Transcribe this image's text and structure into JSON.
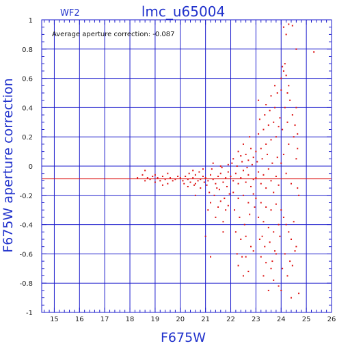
{
  "chart_data": {
    "type": "scatter",
    "title": "lmc_u65004",
    "panel_label": "WF2",
    "xlabel": "F675W",
    "ylabel": "F675W aperture correction",
    "annotation": "Average aperture correction: -0.087",
    "xlim": [
      14.5,
      26
    ],
    "ylim": [
      -1,
      1
    ],
    "x_ticks": [
      15,
      16,
      17,
      18,
      19,
      20,
      21,
      22,
      23,
      24,
      25,
      26
    ],
    "y_ticks": [
      -1,
      -0.8,
      -0.6,
      -0.4,
      -0.2,
      0,
      0.2,
      0.4,
      0.6,
      0.8,
      1
    ],
    "y_tick_labels": [
      "-1",
      "-0.8",
      "-0.6",
      "-0.4",
      "-0.2",
      "0",
      "0.2",
      "0.4",
      "0.6",
      "0.8",
      "1"
    ],
    "grid": true,
    "reference_line": {
      "y": -0.087
    },
    "colors": {
      "axis": "#1a1acc",
      "grid": "#1a1acc",
      "points": "#dd1111",
      "reference_line": "#dd1111",
      "text": "#2233cc"
    },
    "points": [
      [
        18.3,
        -0.08
      ],
      [
        18.5,
        -0.06
      ],
      [
        18.6,
        -0.1
      ],
      [
        18.7,
        -0.08
      ],
      [
        18.8,
        -0.09
      ],
      [
        18.9,
        -0.07
      ],
      [
        19.0,
        -0.11
      ],
      [
        19.1,
        -0.08
      ],
      [
        19.2,
        -0.1
      ],
      [
        19.3,
        -0.07
      ],
      [
        19.4,
        -0.09
      ],
      [
        19.5,
        -0.12
      ],
      [
        19.6,
        -0.08
      ],
      [
        19.8,
        -0.09
      ],
      [
        19.9,
        -0.07
      ],
      [
        18.6,
        -0.03
      ],
      [
        19.0,
        -0.06
      ],
      [
        19.3,
        -0.13
      ],
      [
        19.7,
        -0.1
      ],
      [
        19.5,
        -0.05
      ],
      [
        20.0,
        -0.08
      ],
      [
        20.1,
        -0.1
      ],
      [
        20.2,
        -0.07
      ],
      [
        20.3,
        -0.09
      ],
      [
        20.4,
        -0.11
      ],
      [
        20.5,
        -0.08
      ],
      [
        20.6,
        -0.06
      ],
      [
        20.7,
        -0.1
      ],
      [
        20.8,
        -0.09
      ],
      [
        20.9,
        -0.07
      ],
      [
        20.15,
        -0.12
      ],
      [
        20.35,
        -0.05
      ],
      [
        20.55,
        -0.13
      ],
      [
        20.75,
        -0.04
      ],
      [
        20.95,
        -0.11
      ],
      [
        20.3,
        -0.14
      ],
      [
        20.6,
        -0.12
      ],
      [
        20.8,
        -0.15
      ],
      [
        20.5,
        -0.03
      ],
      [
        20.9,
        -0.02
      ],
      [
        21.0,
        -0.08
      ],
      [
        21.1,
        -0.1
      ],
      [
        21.2,
        -0.06
      ],
      [
        21.3,
        -0.09
      ],
      [
        21.4,
        -0.12
      ],
      [
        21.5,
        -0.07
      ],
      [
        21.6,
        -0.05
      ],
      [
        21.7,
        -0.11
      ],
      [
        21.8,
        -0.08
      ],
      [
        21.9,
        -0.04
      ],
      [
        21.05,
        -0.13
      ],
      [
        21.25,
        -0.02
      ],
      [
        21.45,
        -0.15
      ],
      [
        21.65,
        -0.01
      ],
      [
        21.85,
        -0.14
      ],
      [
        21.15,
        -0.18
      ],
      [
        21.35,
        -0.2
      ],
      [
        21.55,
        -0.16
      ],
      [
        21.75,
        -0.22
      ],
      [
        21.95,
        -0.19
      ],
      [
        21.2,
        -0.25
      ],
      [
        21.5,
        -0.28
      ],
      [
        21.8,
        -0.3
      ],
      [
        21.4,
        -0.35
      ],
      [
        21.7,
        -0.38
      ],
      [
        21.6,
        -0.24
      ],
      [
        21.9,
        -0.27
      ],
      [
        21.3,
        0.02
      ],
      [
        21.6,
        0.0
      ],
      [
        21.9,
        0.01
      ],
      [
        21.0,
        -0.48
      ],
      [
        21.2,
        -0.62
      ],
      [
        21.7,
        -0.45
      ],
      [
        21.1,
        -0.3
      ],
      [
        20.6,
        -0.2
      ],
      [
        22.0,
        -0.07
      ],
      [
        22.1,
        -0.1
      ],
      [
        22.2,
        -0.05
      ],
      [
        22.3,
        -0.12
      ],
      [
        22.4,
        -0.08
      ],
      [
        22.5,
        -0.03
      ],
      [
        22.6,
        -0.11
      ],
      [
        22.7,
        -0.06
      ],
      [
        22.8,
        -0.14
      ],
      [
        22.9,
        -0.09
      ],
      [
        22.05,
        0.02
      ],
      [
        22.25,
        0.0
      ],
      [
        22.45,
        0.03
      ],
      [
        22.65,
        -0.01
      ],
      [
        22.85,
        0.01
      ],
      [
        22.1,
        -0.18
      ],
      [
        22.3,
        -0.22
      ],
      [
        22.5,
        -0.2
      ],
      [
        22.7,
        -0.25
      ],
      [
        22.9,
        -0.19
      ],
      [
        22.15,
        -0.3
      ],
      [
        22.35,
        -0.35
      ],
      [
        22.55,
        -0.4
      ],
      [
        22.75,
        -0.33
      ],
      [
        22.95,
        -0.28
      ],
      [
        22.2,
        -0.45
      ],
      [
        22.4,
        -0.5
      ],
      [
        22.6,
        -0.48
      ],
      [
        22.8,
        -0.55
      ],
      [
        22.25,
        -0.6
      ],
      [
        22.6,
        -0.62
      ],
      [
        22.9,
        -0.58
      ],
      [
        22.3,
        -0.68
      ],
      [
        22.7,
        -0.72
      ],
      [
        22.5,
        -0.75
      ],
      [
        22.45,
        -0.62
      ],
      [
        22.1,
        0.05
      ],
      [
        22.4,
        0.07
      ],
      [
        22.7,
        0.04
      ],
      [
        22.9,
        0.06
      ],
      [
        22.6,
        0.08
      ],
      [
        22.3,
        0.1
      ],
      [
        22.8,
        0.12
      ],
      [
        22.5,
        0.15
      ],
      [
        22.75,
        0.2
      ],
      [
        23.0,
        -0.08
      ],
      [
        23.1,
        -0.04
      ],
      [
        23.2,
        -0.12
      ],
      [
        23.3,
        -0.06
      ],
      [
        23.4,
        -0.15
      ],
      [
        23.5,
        -0.02
      ],
      [
        23.6,
        -0.1
      ],
      [
        23.7,
        -0.18
      ],
      [
        23.8,
        -0.07
      ],
      [
        23.9,
        -0.13
      ],
      [
        23.05,
        0.03
      ],
      [
        23.25,
        0.05
      ],
      [
        23.45,
        0.08
      ],
      [
        23.65,
        0.02
      ],
      [
        23.85,
        0.06
      ],
      [
        23.0,
        0.1
      ],
      [
        23.2,
        0.12
      ],
      [
        23.4,
        0.15
      ],
      [
        23.6,
        0.18
      ],
      [
        23.8,
        0.2
      ],
      [
        23.1,
        0.22
      ],
      [
        23.3,
        0.25
      ],
      [
        23.5,
        0.28
      ],
      [
        23.7,
        0.3
      ],
      [
        23.9,
        0.27
      ],
      [
        23.15,
        0.32
      ],
      [
        23.35,
        0.35
      ],
      [
        23.55,
        0.38
      ],
      [
        23.75,
        0.4
      ],
      [
        23.95,
        0.33
      ],
      [
        23.0,
        -0.22
      ],
      [
        23.2,
        -0.25
      ],
      [
        23.4,
        -0.28
      ],
      [
        23.6,
        -0.3
      ],
      [
        23.8,
        -0.26
      ],
      [
        23.1,
        -0.35
      ],
      [
        23.3,
        -0.38
      ],
      [
        23.5,
        -0.42
      ],
      [
        23.7,
        -0.45
      ],
      [
        23.9,
        -0.4
      ],
      [
        23.15,
        -0.5
      ],
      [
        23.35,
        -0.55
      ],
      [
        23.55,
        -0.52
      ],
      [
        23.75,
        -0.58
      ],
      [
        23.95,
        -0.48
      ],
      [
        23.2,
        -0.62
      ],
      [
        23.4,
        -0.66
      ],
      [
        23.6,
        -0.7
      ],
      [
        23.8,
        -0.6
      ],
      [
        23.3,
        -0.75
      ],
      [
        23.7,
        -0.78
      ],
      [
        23.5,
        -0.85
      ],
      [
        23.9,
        -0.82
      ],
      [
        23.25,
        -0.48
      ],
      [
        23.65,
        -0.65
      ],
      [
        23.1,
        0.45
      ],
      [
        23.6,
        0.48
      ],
      [
        23.85,
        0.5
      ],
      [
        23.4,
        0.42
      ],
      [
        23.75,
        0.55
      ],
      [
        24.0,
        0.02
      ],
      [
        24.1,
        0.08
      ],
      [
        24.2,
        -0.05
      ],
      [
        24.3,
        0.15
      ],
      [
        24.4,
        -0.12
      ],
      [
        24.5,
        0.2
      ],
      [
        24.6,
        0.05
      ],
      [
        24.7,
        -0.2
      ],
      [
        24.05,
        0.25
      ],
      [
        24.25,
        0.3
      ],
      [
        24.45,
        0.35
      ],
      [
        24.15,
        0.4
      ],
      [
        24.35,
        0.45
      ],
      [
        24.55,
        0.28
      ],
      [
        24.65,
        0.12
      ],
      [
        24.0,
        0.6
      ],
      [
        24.1,
        0.65
      ],
      [
        24.2,
        0.62
      ],
      [
        24.05,
        0.68
      ],
      [
        24.15,
        0.7
      ],
      [
        24.3,
        0.55
      ],
      [
        24.0,
        0.52
      ],
      [
        24.25,
        0.5
      ],
      [
        24.1,
        0.95
      ],
      [
        24.3,
        0.97
      ],
      [
        24.45,
        0.96
      ],
      [
        24.6,
        0.8
      ],
      [
        25.3,
        0.78
      ],
      [
        24.2,
        0.9
      ],
      [
        24.0,
        -0.3
      ],
      [
        24.1,
        -0.35
      ],
      [
        24.2,
        -0.4
      ],
      [
        24.3,
        -0.45
      ],
      [
        24.4,
        -0.5
      ],
      [
        24.5,
        -0.38
      ],
      [
        24.6,
        -0.55
      ],
      [
        24.15,
        -0.6
      ],
      [
        24.35,
        -0.65
      ],
      [
        24.55,
        -0.58
      ],
      [
        24.05,
        -0.7
      ],
      [
        24.25,
        -0.75
      ],
      [
        24.45,
        -0.68
      ],
      [
        24.0,
        -0.85
      ],
      [
        24.4,
        -0.9
      ],
      [
        24.7,
        -0.87
      ],
      [
        24.65,
        -0.15
      ],
      [
        24.6,
        0.4
      ],
      [
        24.65,
        0.22
      ]
    ]
  }
}
